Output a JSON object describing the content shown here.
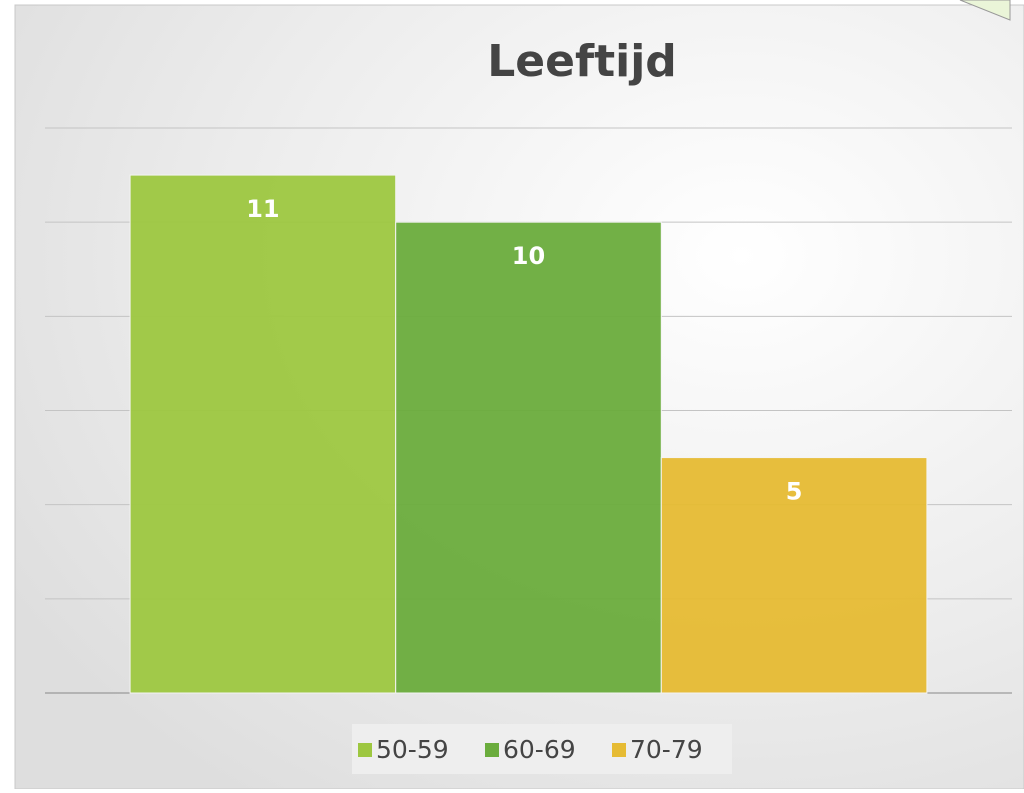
{
  "chart_data": {
    "type": "bar",
    "title": "Leeftijd",
    "categories": [
      null
    ],
    "series": [
      {
        "name": "50-59",
        "color": "#9dc740",
        "values": [
          11
        ]
      },
      {
        "name": "60-69",
        "color": "#6aac3c",
        "values": [
          10
        ]
      },
      {
        "name": "70-79",
        "color": "#e6bb33",
        "values": [
          5
        ]
      }
    ],
    "ylim": [
      0,
      12
    ],
    "yticks": [
      0,
      2,
      4,
      6,
      8,
      10,
      12
    ],
    "grid": true,
    "legend": "bottom"
  }
}
